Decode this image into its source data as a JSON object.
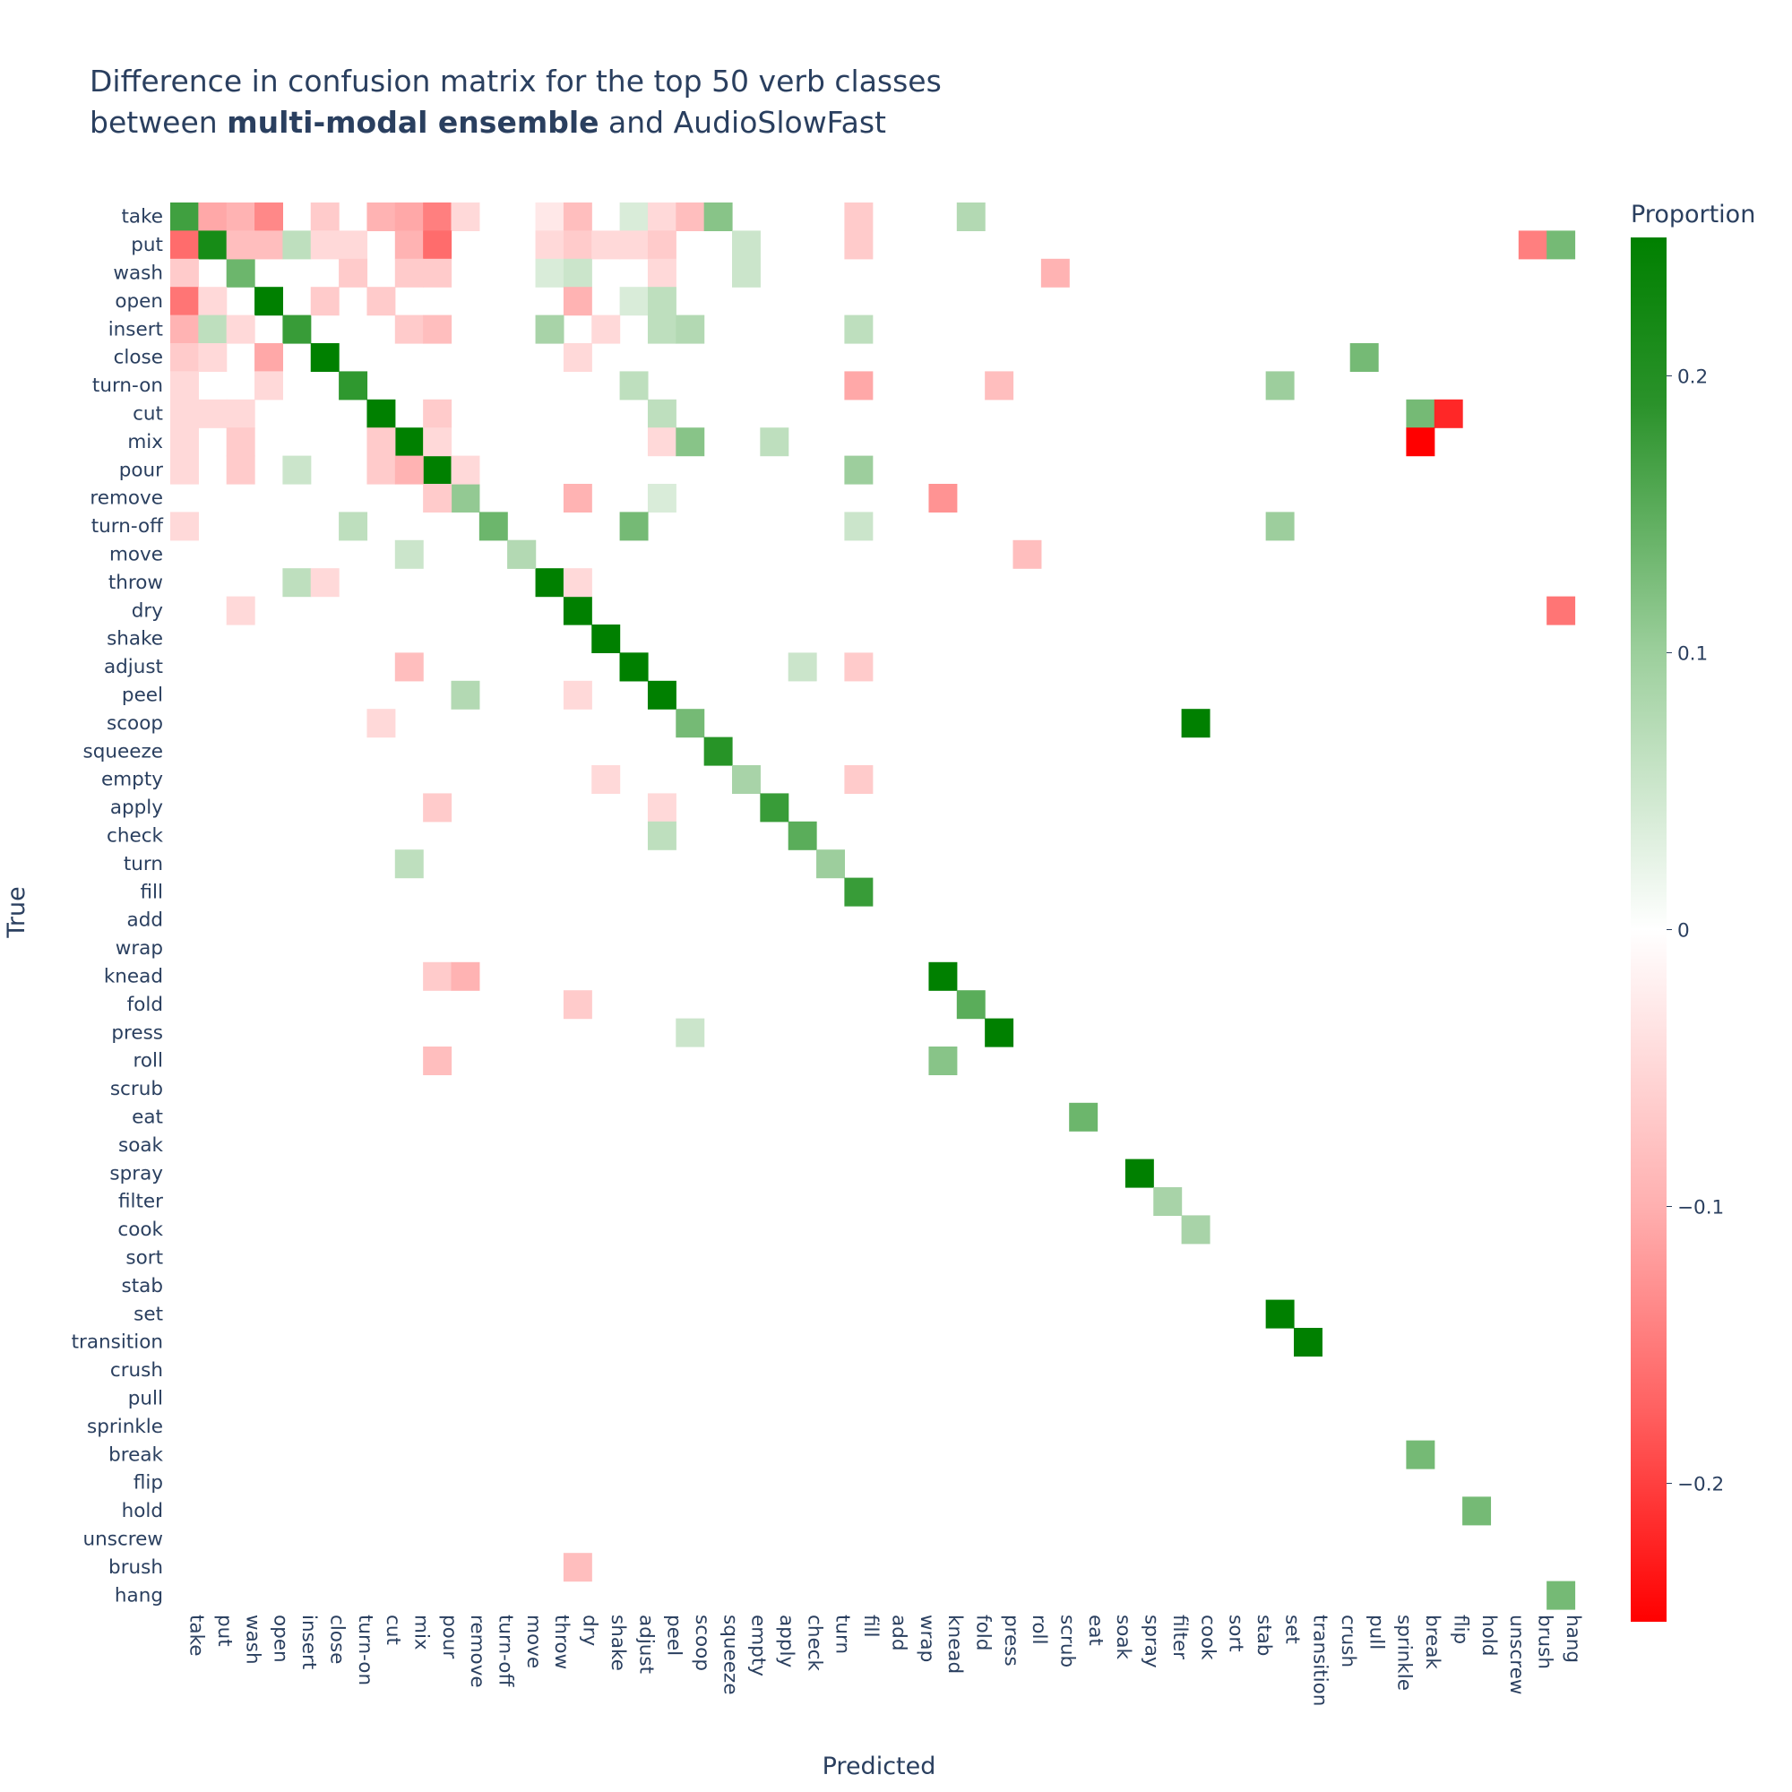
{
  "chart_data": {
    "type": "heatmap",
    "title": {
      "line1": "Difference in confusion matrix for the top 50 verb classes",
      "line2_pre": "between ",
      "line2_bold": "multi-modal ensemble",
      "line2_post": " and AudioSlowFast"
    },
    "xlabel": "Predicted",
    "ylabel": "True",
    "colorbar": {
      "title": "Proportion",
      "range": [
        -0.25,
        0.25
      ],
      "ticks": [
        {
          "value": 0.2,
          "label": "0.2"
        },
        {
          "value": 0.1,
          "label": "0.1"
        },
        {
          "value": 0,
          "label": "0"
        },
        {
          "value": -0.1,
          "label": "−0.1"
        },
        {
          "value": -0.2,
          "label": "−0.2"
        }
      ],
      "colors": {
        "negative": "#ff0000",
        "zero": "#ffffff",
        "positive": "#008000"
      }
    },
    "classes": [
      "take",
      "put",
      "wash",
      "open",
      "insert",
      "close",
      "turn-on",
      "cut",
      "mix",
      "pour",
      "remove",
      "turn-off",
      "move",
      "throw",
      "dry",
      "shake",
      "adjust",
      "peel",
      "scoop",
      "squeeze",
      "empty",
      "apply",
      "check",
      "turn",
      "fill",
      "add",
      "wrap",
      "knead",
      "fold",
      "press",
      "roll",
      "scrub",
      "eat",
      "soak",
      "spray",
      "filter",
      "cook",
      "sort",
      "stab",
      "set",
      "transition",
      "crush",
      "pull",
      "sprinkle",
      "break",
      "flip",
      "hold",
      "unscrew",
      "brush",
      "hang"
    ],
    "cells": [
      [
        "take",
        "take",
        0.17
      ],
      [
        "put",
        "put",
        0.22
      ],
      [
        "wash",
        "wash",
        0.12
      ],
      [
        "open",
        "open",
        0.25
      ],
      [
        "insert",
        "insert",
        0.18
      ],
      [
        "close",
        "close",
        0.25
      ],
      [
        "turn-on",
        "turn-on",
        0.19
      ],
      [
        "cut",
        "cut",
        0.25
      ],
      [
        "mix",
        "mix",
        0.25
      ],
      [
        "pour",
        "pour",
        0.25
      ],
      [
        "remove",
        "remove",
        0.08
      ],
      [
        "turn-off",
        "turn-off",
        0.12
      ],
      [
        "move",
        "move",
        0.05
      ],
      [
        "throw",
        "throw",
        0.25
      ],
      [
        "dry",
        "dry",
        0.25
      ],
      [
        "shake",
        "shake",
        0.25
      ],
      [
        "adjust",
        "adjust",
        0.25
      ],
      [
        "peel",
        "peel",
        0.25
      ],
      [
        "scoop",
        "scoop",
        0.11
      ],
      [
        "squeeze",
        "squeeze",
        0.2
      ],
      [
        "empty",
        "empty",
        0.06
      ],
      [
        "apply",
        "apply",
        0.18
      ],
      [
        "check",
        "check",
        0.14
      ],
      [
        "turn",
        "turn",
        0.07
      ],
      [
        "fill",
        "fill",
        0.18
      ],
      [
        "knead",
        "knead",
        0.25
      ],
      [
        "fold",
        "fold",
        0.14
      ],
      [
        "press",
        "press",
        0.25
      ],
      [
        "eat",
        "eat",
        0.12
      ],
      [
        "spray",
        "spray",
        0.25
      ],
      [
        "filter",
        "filter",
        0.06
      ],
      [
        "cook",
        "cook",
        0.06
      ],
      [
        "set",
        "set",
        0.25
      ],
      [
        "transition",
        "transition",
        0.25
      ],
      [
        "break",
        "break",
        0.11
      ],
      [
        "hold",
        "hold",
        0.11
      ],
      [
        "hang",
        "hang",
        0.11
      ],
      [
        "take",
        "put",
        -0.06
      ],
      [
        "take",
        "wash",
        -0.05
      ],
      [
        "take",
        "open",
        -0.09
      ],
      [
        "take",
        "close",
        -0.03
      ],
      [
        "take",
        "cut",
        -0.05
      ],
      [
        "take",
        "mix",
        -0.06
      ],
      [
        "take",
        "pour",
        -0.1
      ],
      [
        "take",
        "remove",
        -0.02
      ],
      [
        "take",
        "throw",
        -0.01
      ],
      [
        "take",
        "dry",
        -0.04
      ],
      [
        "take",
        "adjust",
        0.02
      ],
      [
        "take",
        "peel",
        -0.02
      ],
      [
        "take",
        "scoop",
        -0.04
      ],
      [
        "take",
        "squeeze",
        0.09
      ],
      [
        "take",
        "fill",
        -0.03
      ],
      [
        "take",
        "fold",
        0.05
      ],
      [
        "put",
        "take",
        -0.12
      ],
      [
        "put",
        "put",
        0.22
      ],
      [
        "put",
        "wash",
        -0.04
      ],
      [
        "put",
        "open",
        -0.04
      ],
      [
        "put",
        "insert",
        0.04
      ],
      [
        "put",
        "close",
        -0.02
      ],
      [
        "put",
        "turn-on",
        -0.02
      ],
      [
        "put",
        "mix",
        -0.05
      ],
      [
        "put",
        "pour",
        -0.12
      ],
      [
        "put",
        "throw",
        -0.02
      ],
      [
        "put",
        "dry",
        -0.03
      ],
      [
        "put",
        "shake",
        -0.02
      ],
      [
        "put",
        "adjust",
        -0.02
      ],
      [
        "put",
        "peel",
        -0.03
      ],
      [
        "put",
        "empty",
        0.03
      ],
      [
        "put",
        "fill",
        -0.03
      ],
      [
        "put",
        "brush",
        -0.1
      ],
      [
        "put",
        "hang",
        0.11
      ],
      [
        "wash",
        "take",
        -0.03
      ],
      [
        "wash",
        "turn-on",
        -0.03
      ],
      [
        "wash",
        "mix",
        -0.03
      ],
      [
        "wash",
        "pour",
        -0.03
      ],
      [
        "wash",
        "throw",
        0.02
      ],
      [
        "wash",
        "dry",
        0.03
      ],
      [
        "wash",
        "peel",
        -0.02
      ],
      [
        "wash",
        "empty",
        0.03
      ],
      [
        "wash",
        "scrub",
        -0.05
      ],
      [
        "open",
        "take",
        -0.11
      ],
      [
        "open",
        "put",
        -0.02
      ],
      [
        "open",
        "close",
        -0.03
      ],
      [
        "open",
        "cut",
        -0.03
      ],
      [
        "open",
        "dry",
        -0.05
      ],
      [
        "open",
        "adjust",
        0.02
      ],
      [
        "open",
        "peel",
        0.04
      ],
      [
        "insert",
        "take",
        -0.05
      ],
      [
        "insert",
        "put",
        0.04
      ],
      [
        "insert",
        "wash",
        -0.02
      ],
      [
        "insert",
        "mix",
        -0.03
      ],
      [
        "insert",
        "pour",
        -0.04
      ],
      [
        "insert",
        "throw",
        0.06
      ],
      [
        "insert",
        "shake",
        -0.02
      ],
      [
        "insert",
        "peel",
        0.04
      ],
      [
        "insert",
        "scoop",
        0.05
      ],
      [
        "insert",
        "fill",
        0.04
      ],
      [
        "close",
        "take",
        -0.03
      ],
      [
        "close",
        "put",
        -0.02
      ],
      [
        "close",
        "open",
        -0.06
      ],
      [
        "close",
        "dry",
        -0.02
      ],
      [
        "close",
        "pull",
        0.11
      ],
      [
        "turn-on",
        "take",
        -0.02
      ],
      [
        "turn-on",
        "open",
        -0.02
      ],
      [
        "turn-on",
        "adjust",
        0.04
      ],
      [
        "turn-on",
        "fill",
        -0.06
      ],
      [
        "turn-on",
        "press",
        -0.04
      ],
      [
        "turn-on",
        "set",
        0.07
      ],
      [
        "cut",
        "take",
        -0.02
      ],
      [
        "cut",
        "put",
        -0.02
      ],
      [
        "cut",
        "wash",
        -0.02
      ],
      [
        "cut",
        "pour",
        -0.03
      ],
      [
        "cut",
        "peel",
        0.04
      ],
      [
        "cut",
        "break",
        0.11
      ],
      [
        "cut",
        "flip",
        -0.2
      ],
      [
        "mix",
        "take",
        -0.02
      ],
      [
        "mix",
        "wash",
        -0.03
      ],
      [
        "mix",
        "cut",
        -0.03
      ],
      [
        "mix",
        "pour",
        -0.02
      ],
      [
        "mix",
        "peel",
        -0.02
      ],
      [
        "mix",
        "scoop",
        0.09
      ],
      [
        "mix",
        "apply",
        0.04
      ],
      [
        "mix",
        "break",
        -0.25
      ],
      [
        "pour",
        "take",
        -0.02
      ],
      [
        "pour",
        "wash",
        -0.03
      ],
      [
        "pour",
        "insert",
        0.03
      ],
      [
        "pour",
        "cut",
        -0.03
      ],
      [
        "pour",
        "mix",
        -0.05
      ],
      [
        "pour",
        "remove",
        -0.02
      ],
      [
        "pour",
        "fill",
        0.07
      ],
      [
        "remove",
        "pour",
        -0.03
      ],
      [
        "remove",
        "dry",
        -0.05
      ],
      [
        "remove",
        "peel",
        0.02
      ],
      [
        "remove",
        "knead",
        -0.08
      ],
      [
        "turn-off",
        "take",
        -0.02
      ],
      [
        "turn-off",
        "turn-on",
        0.04
      ],
      [
        "turn-off",
        "adjust",
        0.11
      ],
      [
        "turn-off",
        "fill",
        0.03
      ],
      [
        "turn-off",
        "set",
        0.07
      ],
      [
        "move",
        "mix",
        0.03
      ],
      [
        "move",
        "move",
        0.05
      ],
      [
        "move",
        "roll",
        -0.04
      ],
      [
        "throw",
        "insert",
        0.04
      ],
      [
        "throw",
        "close",
        -0.02
      ],
      [
        "throw",
        "dry",
        -0.02
      ],
      [
        "dry",
        "wash",
        -0.02
      ],
      [
        "dry",
        "hang",
        -0.11
      ],
      [
        "adjust",
        "mix",
        -0.04
      ],
      [
        "adjust",
        "check",
        0.03
      ],
      [
        "adjust",
        "fill",
        -0.03
      ],
      [
        "peel",
        "remove",
        0.05
      ],
      [
        "peel",
        "dry",
        -0.02
      ],
      [
        "scoop",
        "cut",
        -0.02
      ],
      [
        "scoop",
        "cook",
        0.25
      ],
      [
        "empty",
        "fill",
        -0.03
      ],
      [
        "empty",
        "shake",
        -0.02
      ],
      [
        "apply",
        "pour",
        -0.03
      ],
      [
        "apply",
        "peel",
        -0.02
      ],
      [
        "check",
        "peel",
        0.04
      ],
      [
        "turn",
        "mix",
        0.04
      ],
      [
        "knead",
        "pour",
        -0.03
      ],
      [
        "knead",
        "remove",
        -0.05
      ],
      [
        "fold",
        "dry",
        -0.03
      ],
      [
        "press",
        "scoop",
        0.03
      ],
      [
        "roll",
        "pour",
        -0.04
      ],
      [
        "roll",
        "knead",
        0.09
      ],
      [
        "brush",
        "dry",
        -0.04
      ],
      [
        "adjust",
        "adjust",
        0.25
      ]
    ]
  }
}
